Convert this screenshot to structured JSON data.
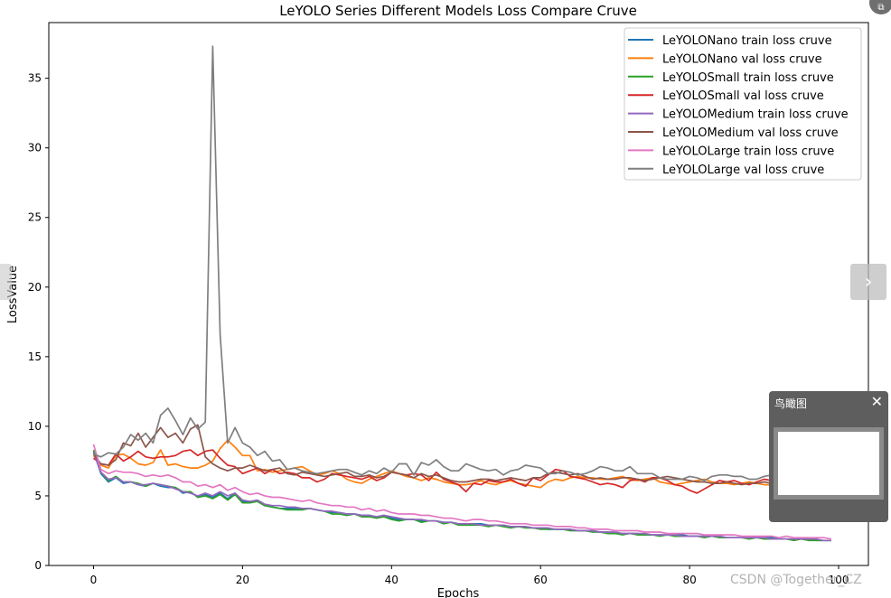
{
  "chart_data": {
    "type": "line",
    "title": "LeYOLO Series Different Models Loss Compare Cruve",
    "xlabel": "Epochs",
    "ylabel": "LossValue",
    "xlim": [
      -6,
      104
    ],
    "ylim": [
      0,
      39
    ],
    "xticks": [
      0,
      20,
      40,
      60,
      80,
      100
    ],
    "yticks": [
      0,
      5,
      10,
      15,
      20,
      25,
      30,
      35
    ],
    "grid": false,
    "legend_position": "top-right",
    "x": [
      0,
      1,
      2,
      3,
      4,
      5,
      6,
      7,
      8,
      9,
      10,
      11,
      12,
      13,
      14,
      15,
      16,
      17,
      18,
      19,
      20,
      21,
      22,
      23,
      24,
      25,
      26,
      27,
      28,
      29,
      30,
      31,
      32,
      33,
      34,
      35,
      36,
      37,
      38,
      39,
      40,
      41,
      42,
      43,
      44,
      45,
      46,
      47,
      48,
      49,
      50,
      51,
      52,
      53,
      54,
      55,
      56,
      57,
      58,
      59,
      60,
      61,
      62,
      63,
      64,
      65,
      66,
      67,
      68,
      69,
      70,
      71,
      72,
      73,
      74,
      75,
      76,
      77,
      78,
      79,
      80,
      81,
      82,
      83,
      84,
      85,
      86,
      87,
      88,
      89,
      90,
      91,
      92,
      93,
      94,
      95,
      96,
      97,
      98,
      99
    ],
    "series": [
      {
        "name": "LeYOLONano train loss cruve",
        "color": "#1f77b4",
        "values": [
          8.2,
          6.6,
          6.0,
          6.3,
          5.9,
          6.0,
          5.8,
          5.7,
          5.9,
          5.7,
          5.6,
          5.6,
          5.2,
          5.3,
          4.9,
          5.1,
          4.9,
          5.2,
          4.8,
          5.2,
          4.6,
          4.6,
          4.6,
          4.3,
          4.2,
          4.1,
          4.1,
          4.1,
          4.1,
          4.1,
          4.0,
          3.9,
          3.8,
          3.8,
          3.7,
          3.7,
          3.6,
          3.6,
          3.5,
          3.6,
          3.4,
          3.3,
          3.3,
          3.3,
          3.2,
          3.2,
          3.2,
          3.1,
          3.1,
          3.0,
          2.9,
          3.0,
          3.0,
          2.9,
          2.9,
          2.9,
          2.8,
          2.8,
          2.8,
          2.7,
          2.7,
          2.6,
          2.6,
          2.6,
          2.6,
          2.5,
          2.5,
          2.5,
          2.4,
          2.4,
          2.3,
          2.3,
          2.3,
          2.3,
          2.2,
          2.2,
          2.2,
          2.2,
          2.2,
          2.2,
          2.1,
          2.1,
          2.1,
          2.1,
          2.1,
          2.0,
          2.0,
          2.0,
          2.0,
          2.0,
          2.0,
          2.0,
          1.9,
          1.9,
          1.9,
          1.9,
          1.9,
          1.8,
          1.8,
          1.8
        ]
      },
      {
        "name": "LeYOLONano val loss cruve",
        "color": "#ff7f0e",
        "values": [
          7.9,
          7.2,
          7.0,
          7.9,
          8.0,
          7.7,
          7.3,
          7.2,
          7.4,
          8.3,
          7.2,
          7.3,
          7.1,
          7.0,
          7.0,
          7.2,
          7.5,
          8.4,
          9.0,
          8.5,
          7.9,
          7.9,
          6.8,
          6.9,
          6.7,
          6.8,
          6.9,
          7.0,
          7.1,
          6.8,
          6.5,
          6.6,
          6.8,
          6.6,
          6.2,
          6.0,
          5.9,
          6.2,
          6.4,
          6.6,
          6.8,
          6.6,
          6.4,
          6.3,
          6.1,
          6.3,
          6.2,
          6.0,
          5.9,
          5.8,
          5.8,
          5.9,
          6.1,
          5.9,
          5.8,
          6.0,
          6.1,
          5.9,
          5.8,
          5.7,
          5.6,
          6.0,
          6.2,
          6.1,
          6.3,
          6.4,
          6.3,
          6.3,
          6.2,
          6.2,
          6.3,
          6.4,
          6.2,
          6.1,
          6.2,
          6.3,
          6.0,
          5.9,
          5.8,
          5.9,
          6.0,
          6.1,
          6.2,
          6.0,
          5.9,
          5.9,
          5.8,
          5.9,
          6.0,
          5.9,
          5.8,
          5.8,
          5.9,
          6.1,
          6.0,
          6.0,
          6.1,
          6.0,
          6.0,
          6.0
        ]
      },
      {
        "name": "LeYOLOSmall train loss cruve",
        "color": "#2ca02c",
        "values": [
          8.3,
          6.7,
          6.1,
          6.4,
          6.0,
          6.0,
          5.9,
          5.7,
          5.9,
          5.8,
          5.7,
          5.6,
          5.3,
          5.3,
          4.9,
          5.0,
          4.8,
          5.1,
          4.7,
          5.1,
          4.5,
          4.5,
          4.6,
          4.3,
          4.2,
          4.1,
          4.0,
          4.0,
          4.0,
          4.1,
          4.0,
          3.9,
          3.7,
          3.7,
          3.6,
          3.7,
          3.5,
          3.5,
          3.4,
          3.5,
          3.3,
          3.2,
          3.3,
          3.3,
          3.1,
          3.2,
          3.2,
          3.0,
          3.1,
          2.9,
          2.9,
          2.9,
          2.9,
          2.8,
          2.9,
          2.8,
          2.7,
          2.8,
          2.7,
          2.7,
          2.6,
          2.6,
          2.6,
          2.6,
          2.5,
          2.5,
          2.5,
          2.4,
          2.4,
          2.3,
          2.3,
          2.2,
          2.3,
          2.2,
          2.2,
          2.2,
          2.1,
          2.2,
          2.1,
          2.1,
          2.1,
          2.1,
          2.0,
          2.1,
          2.0,
          2.0,
          2.0,
          2.0,
          1.9,
          2.0,
          1.9,
          1.9,
          1.9,
          1.9,
          1.8,
          1.9,
          1.8,
          1.8,
          1.8,
          1.8
        ]
      },
      {
        "name": "LeYOLOSmall val loss cruve",
        "color": "#d62728",
        "values": [
          7.7,
          7.3,
          7.2,
          8.0,
          7.5,
          7.8,
          8.2,
          7.8,
          7.7,
          7.8,
          7.8,
          7.9,
          8.2,
          8.3,
          7.9,
          8.2,
          8.3,
          7.7,
          7.2,
          7.1,
          6.6,
          6.8,
          7.0,
          6.6,
          6.9,
          6.6,
          6.7,
          6.6,
          6.3,
          6.3,
          6.0,
          6.2,
          6.6,
          6.5,
          6.4,
          6.3,
          6.2,
          6.4,
          6.1,
          6.3,
          6.7,
          6.6,
          6.5,
          6.6,
          6.5,
          6.1,
          6.7,
          6.2,
          6.0,
          5.8,
          5.3,
          5.9,
          5.8,
          6.1,
          6.0,
          6.0,
          6.2,
          5.9,
          5.7,
          6.3,
          6.1,
          6.5,
          6.9,
          6.8,
          6.4,
          6.3,
          6.2,
          6.0,
          5.8,
          5.9,
          5.8,
          5.6,
          6.1,
          6.2,
          6.0,
          6.3,
          6.3,
          6.1,
          5.8,
          5.7,
          5.4,
          5.2,
          5.5,
          5.8,
          6.1,
          6.0,
          6.1,
          5.9,
          5.8,
          6.0,
          6.2,
          6.1,
          5.9,
          6.0,
          6.1,
          6.1,
          6.2,
          6.1,
          6.0,
          6.0
        ]
      },
      {
        "name": "LeYOLOMedium train loss cruve",
        "color": "#9467bd",
        "values": [
          8.1,
          6.7,
          6.2,
          6.3,
          6.0,
          6.0,
          5.8,
          5.8,
          5.9,
          5.8,
          5.7,
          5.5,
          5.3,
          5.2,
          5.0,
          5.2,
          5.0,
          5.3,
          5.0,
          5.2,
          4.7,
          4.6,
          4.7,
          4.4,
          4.3,
          4.3,
          4.2,
          4.2,
          4.1,
          4.1,
          4.0,
          3.9,
          3.9,
          3.8,
          3.7,
          3.7,
          3.6,
          3.6,
          3.5,
          3.6,
          3.5,
          3.4,
          3.3,
          3.3,
          3.3,
          3.2,
          3.2,
          3.1,
          3.1,
          3.0,
          3.0,
          3.0,
          2.9,
          2.9,
          2.9,
          2.9,
          2.8,
          2.8,
          2.8,
          2.7,
          2.7,
          2.7,
          2.6,
          2.6,
          2.6,
          2.5,
          2.5,
          2.5,
          2.4,
          2.4,
          2.4,
          2.3,
          2.3,
          2.3,
          2.3,
          2.2,
          2.2,
          2.2,
          2.2,
          2.1,
          2.1,
          2.1,
          2.1,
          2.1,
          2.1,
          2.0,
          2.0,
          2.0,
          2.0,
          2.0,
          2.0,
          1.9,
          1.9,
          1.9,
          1.9,
          1.9,
          1.9,
          1.9,
          1.8,
          1.8
        ]
      },
      {
        "name": "LeYOLOMedium val loss cruve",
        "color": "#8c564b",
        "values": [
          8.0,
          7.3,
          7.2,
          7.6,
          8.8,
          8.6,
          9.5,
          8.5,
          9.2,
          9.9,
          9.2,
          9.5,
          8.8,
          9.8,
          10.1,
          7.8,
          7.3,
          7.0,
          6.8,
          7.0,
          7.0,
          7.2,
          7.0,
          6.8,
          6.9,
          7.0,
          6.6,
          6.5,
          6.7,
          6.6,
          6.5,
          6.4,
          6.5,
          6.6,
          6.7,
          6.4,
          6.4,
          6.5,
          6.3,
          6.4,
          6.7,
          6.6,
          6.5,
          6.3,
          6.6,
          6.4,
          6.5,
          6.3,
          6.1,
          6.0,
          6.0,
          6.1,
          6.2,
          6.2,
          6.1,
          6.2,
          6.3,
          6.2,
          6.1,
          6.3,
          6.3,
          6.6,
          6.7,
          6.6,
          6.5,
          6.6,
          6.4,
          6.2,
          6.3,
          6.2,
          6.2,
          6.3,
          6.3,
          6.2,
          6.1,
          6.2,
          6.3,
          6.4,
          6.3,
          6.2,
          6.1,
          6.0,
          6.0,
          5.9,
          5.9,
          6.0,
          5.9,
          5.8,
          5.9,
          5.9,
          6.0,
          5.9,
          5.9,
          6.0,
          6.0,
          6.0,
          5.9,
          5.9,
          6.0,
          6.0
        ]
      },
      {
        "name": "LeYOLOLarge train loss cruve",
        "color": "#e377c2",
        "values": [
          8.7,
          6.9,
          6.6,
          6.8,
          6.7,
          6.7,
          6.6,
          6.4,
          6.5,
          6.4,
          6.5,
          6.3,
          6.0,
          6.0,
          5.7,
          5.8,
          5.6,
          5.8,
          5.4,
          5.6,
          5.3,
          5.1,
          5.2,
          5.0,
          4.9,
          4.9,
          4.8,
          4.7,
          4.6,
          4.7,
          4.5,
          4.4,
          4.3,
          4.3,
          4.2,
          4.2,
          4.0,
          4.1,
          3.9,
          4.0,
          3.8,
          3.7,
          3.7,
          3.7,
          3.6,
          3.6,
          3.5,
          3.4,
          3.4,
          3.3,
          3.2,
          3.3,
          3.3,
          3.2,
          3.2,
          3.1,
          3.0,
          3.0,
          3.0,
          2.9,
          2.9,
          2.9,
          2.8,
          2.8,
          2.8,
          2.7,
          2.7,
          2.6,
          2.6,
          2.6,
          2.5,
          2.5,
          2.5,
          2.5,
          2.4,
          2.4,
          2.4,
          2.3,
          2.3,
          2.3,
          2.3,
          2.3,
          2.2,
          2.2,
          2.2,
          2.2,
          2.2,
          2.1,
          2.1,
          2.1,
          2.1,
          2.1,
          2.0,
          2.1,
          2.0,
          2.0,
          2.0,
          2.0,
          2.0,
          1.9
        ]
      },
      {
        "name": "LeYOLOLarge val loss cruve",
        "color": "#7f7f7f",
        "values": [
          8.0,
          7.8,
          8.1,
          8.0,
          8.5,
          9.4,
          9.0,
          9.5,
          8.8,
          10.8,
          11.3,
          10.4,
          9.4,
          10.6,
          9.8,
          10.3,
          37.3,
          16.6,
          8.8,
          9.9,
          8.8,
          8.5,
          7.9,
          8.2,
          7.5,
          7.6,
          6.9,
          7.0,
          6.8,
          6.7,
          6.6,
          6.7,
          6.8,
          6.9,
          6.9,
          6.7,
          6.5,
          6.8,
          6.6,
          7.0,
          6.7,
          7.3,
          7.3,
          6.5,
          7.4,
          7.2,
          7.6,
          7.1,
          6.8,
          6.8,
          7.3,
          7.1,
          6.9,
          6.8,
          6.9,
          6.5,
          6.8,
          6.9,
          7.2,
          7.1,
          7.0,
          6.6,
          6.6,
          6.8,
          6.7,
          6.5,
          6.6,
          6.8,
          7.1,
          7.0,
          6.8,
          6.8,
          7.1,
          6.6,
          6.6,
          6.6,
          6.3,
          6.2,
          6.2,
          6.2,
          6.4,
          6.3,
          6.1,
          6.4,
          6.5,
          6.5,
          6.4,
          6.4,
          6.2,
          6.2,
          6.4,
          6.5,
          6.4,
          6.3,
          6.5,
          6.5,
          6.7,
          6.6,
          6.6,
          6.6
        ]
      }
    ]
  },
  "ui": {
    "next_glyph": "›",
    "minimap_title": "鸟瞰图",
    "minimap_close": "✕",
    "corner_glyph": "⧉",
    "watermark": "CSDN @Together_CZ"
  },
  "colors": {
    "axes": "#000000",
    "background": "#ffffff",
    "legend_border": "#cccccc"
  }
}
